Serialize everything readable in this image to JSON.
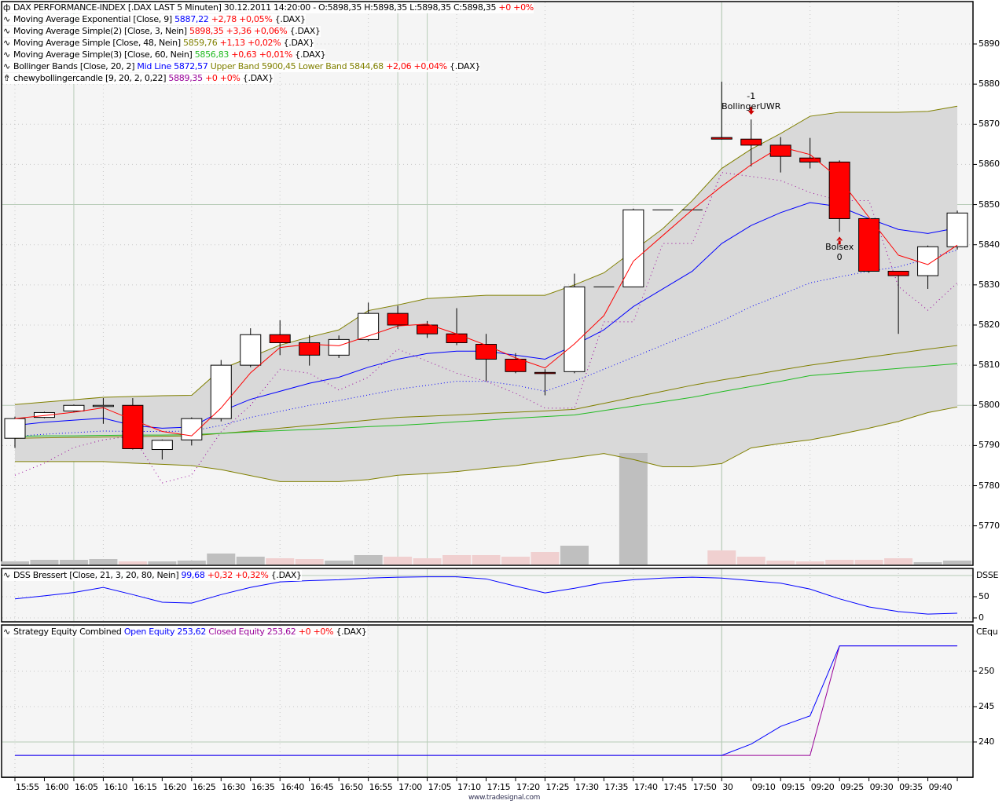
{
  "header": {
    "title": "DAX PERFORMANCE-INDEX [.DAX LAST 5 Minuten] 30.12.2011 14:20:00 - O:5898,35 H:5898,35 L:5898,35 C:5898,35",
    "change": "+0 +0%"
  },
  "legends": [
    {
      "name": "Moving Average Exponential [Close, 9]",
      "value": "5887,22",
      "value_color": "#0000ff",
      "change": "+2,78 +0,05%",
      "suffix": "{.DAX}"
    },
    {
      "name": "Moving Average Simple(2) [Close, 3, Nein]",
      "value": "5898,35",
      "value_color": "#ff0000",
      "change": "+3,36 +0,06%",
      "suffix": "{.DAX}"
    },
    {
      "name": "Moving Average Simple [Close, 48, Nein]",
      "value": "5859,76",
      "value_color": "#808000",
      "change": "+1,13 +0,02%",
      "suffix": "{.DAX}"
    },
    {
      "name": "Moving Average Simple(3) [Close, 60, Nein]",
      "value": "5856,83",
      "value_color": "#22bb22",
      "change": "+0,63 +0,01%",
      "suffix": "{.DAX}"
    }
  ],
  "bollinger_legend": {
    "name": "Bollinger Bands [Close, 20, 2]",
    "mid_label": "Mid Line 5872,57",
    "upper_label": "Upper Band 5900,45",
    "lower_label": "Lower Band 5844,68",
    "change": "+2,06 +0,04%",
    "suffix": "{.DAX}"
  },
  "chewy_legend": {
    "name": "chewybollingercandle [9, 20, 2, 0,22]",
    "value": "5889,35",
    "change": "+0 +0%",
    "suffix": "{.DAX}"
  },
  "dss_legend": {
    "name": "DSS Bressert [Close, 21, 3, 20, 80, Nein]",
    "value": "99,68",
    "change": "+0,32 +0,32%",
    "suffix": "{.DAX}",
    "axis_title": "DSSE"
  },
  "equity_legend": {
    "name": "Strategy Equity Combined",
    "open": "Open Equity 253,62",
    "closed": "Closed Equity 253,62",
    "change": "+0 +0%",
    "suffix": "{.DAX}",
    "axis_title": "CEqu"
  },
  "annotations": [
    {
      "top": "-1",
      "label": "BollingerUWR",
      "bar": 25,
      "arrow": "down"
    },
    {
      "top": "Bolsex",
      "label": "0",
      "bar": 28,
      "arrow": "up"
    }
  ],
  "footer": "www.tradesignal.com",
  "colors": {
    "up": "#ffffff",
    "down": "#ff0000",
    "ema": "#0000ff",
    "sma3": "#ff0000",
    "ma48": "#808000",
    "ma60": "#22bb22",
    "band_fill": "#d9d9d9",
    "band_line": "#808000",
    "chewy": "#990099",
    "open_equity": "#0000ff",
    "closed_equity": "#990099",
    "vol_up": "#bfbfbf",
    "vol_down": "#f0d0d0"
  },
  "chart_data": [
    {
      "type": "candlestick",
      "title": "DAX PERFORMANCE-INDEX",
      "ylim": [
        5765,
        5895
      ],
      "yticks": [
        5890,
        5880,
        5870,
        5860,
        5850,
        5840,
        5830,
        5820,
        5810,
        5800,
        5790,
        5780,
        5770
      ],
      "ytick_labels": [
        "5890",
        "5880",
        "5870",
        "5860",
        "5850",
        "5840",
        "5830",
        "5820",
        "5810",
        "5800",
        "5790",
        "5780",
        "5770"
      ],
      "x_labels": [
        "15:55",
        "16:00",
        "16:05",
        "16:10",
        "16:15",
        "16:20",
        "16:25",
        "16:30",
        "16:35",
        "16:40",
        "16:45",
        "16:50",
        "16:55",
        "17:00",
        "17:05",
        "17:10",
        "17:15",
        "17:20",
        "17:25",
        "17:30",
        "17:35",
        "17:40",
        "17:45",
        "17:50",
        "30",
        "09:10",
        "09:15",
        "09:20",
        "09:25",
        "09:30",
        "09:35",
        "09:40",
        ""
      ],
      "ohlc": [
        [
          5791.8,
          5797.2,
          5789.4,
          5796.7
        ],
        [
          5797.0,
          5798.4,
          5796.8,
          5798.2
        ],
        [
          5798.6,
          5800.2,
          5798.4,
          5800.0
        ],
        [
          5800.0,
          5801.8,
          5795.4,
          5800.0
        ],
        [
          5800.0,
          5801.8,
          5789.0,
          5789.2
        ],
        [
          5789.0,
          5791.5,
          5786.5,
          5791.3
        ],
        [
          5791.4,
          5797.0,
          5790.0,
          5796.7
        ],
        [
          5796.7,
          5811.3,
          5796.0,
          5810.0
        ],
        [
          5810.0,
          5819.2,
          5809.5,
          5817.6
        ],
        [
          5817.6,
          5821.2,
          5812.5,
          5815.6
        ],
        [
          5815.6,
          5817.5,
          5809.9,
          5812.5
        ],
        [
          5812.5,
          5817.4,
          5811.8,
          5816.4
        ],
        [
          5816.4,
          5825.6,
          5816.0,
          5822.9
        ],
        [
          5822.9,
          5824.8,
          5819.0,
          5820.0
        ],
        [
          5820.0,
          5821.0,
          5816.8,
          5817.8
        ],
        [
          5817.8,
          5824.2,
          5815.0,
          5815.6
        ],
        [
          5815.2,
          5817.8,
          5806.0,
          5811.5
        ],
        [
          5811.5,
          5813.0,
          5808.0,
          5808.4
        ],
        [
          5808.2,
          5809.0,
          5802.5,
          5808.0
        ],
        [
          5808.4,
          5832.8,
          5808.0,
          5829.5
        ],
        [
          5829.5,
          5829.5,
          5829.5,
          5829.5
        ],
        [
          5829.5,
          5849.0,
          5829.5,
          5848.7
        ],
        [
          5848.7,
          5848.7,
          5848.7,
          5848.7
        ],
        [
          5848.7,
          5848.7,
          5848.7,
          5848.7
        ],
        [
          5866.7,
          5880.6,
          5866.2,
          5866.3
        ],
        [
          5866.3,
          5871.2,
          5859.5,
          5864.8
        ],
        [
          5864.8,
          5866.8,
          5858.0,
          5862.0
        ],
        [
          5861.6,
          5866.6,
          5859.0,
          5860.6
        ],
        [
          5860.6,
          5861.0,
          5843.2,
          5846.5
        ],
        [
          5846.5,
          5846.5,
          5833.0,
          5833.4
        ],
        [
          5833.4,
          5833.4,
          5817.8,
          5832.3
        ],
        [
          5832.3,
          5839.8,
          5829.0,
          5839.5
        ],
        [
          5839.5,
          5848.5,
          5838.8,
          5847.9
        ]
      ],
      "volume": [
        4,
        6,
        6,
        7,
        4,
        4,
        5,
        14,
        10,
        8,
        7,
        5,
        12,
        10,
        8,
        12,
        12,
        10,
        16,
        24,
        0,
        142,
        0,
        0,
        18,
        10,
        5,
        4,
        6,
        6,
        8,
        3,
        5
      ],
      "series": [
        {
          "key": "ema",
          "values": [
            5795,
            5795.8,
            5796.3,
            5796.8,
            5795,
            5794.3,
            5794.6,
            5798.5,
            5801.5,
            5803.5,
            5805.5,
            5807,
            5809.5,
            5811.5,
            5812.9,
            5813.5,
            5813.5,
            5812.5,
            5811.5,
            5815,
            5818.8,
            5824.6,
            5829,
            5833.4,
            5840.3,
            5844.8,
            5848,
            5850.5,
            5849.5,
            5846.5,
            5843.8,
            5842.8,
            5844.2
          ]
        },
        {
          "key": "upper",
          "values": [
            5800.2,
            5800.8,
            5801.4,
            5802,
            5802.2,
            5802.4,
            5802.5,
            5809,
            5812,
            5815,
            5817,
            5818.8,
            5823.6,
            5825,
            5826.6,
            5827,
            5827.4,
            5827.4,
            5827.4,
            5830,
            5833,
            5838.5,
            5844,
            5851,
            5859,
            5863.8,
            5867.7,
            5872,
            5873,
            5873,
            5873,
            5873.2,
            5874.5
          ]
        },
        {
          "key": "lower",
          "values": [
            5786,
            5786,
            5786,
            5786,
            5785.6,
            5785.3,
            5785,
            5784,
            5782.5,
            5781,
            5781,
            5781,
            5781.5,
            5782.6,
            5783,
            5783.5,
            5784.3,
            5785,
            5786,
            5787,
            5788,
            5786.5,
            5784.7,
            5784.7,
            5785.5,
            5789.4,
            5790.5,
            5791.4,
            5792.8,
            5794.3,
            5796,
            5798.2,
            5799.6
          ]
        },
        {
          "key": "mid",
          "values": [
            5792.3,
            5792.8,
            5793.2,
            5793.6,
            5793.5,
            5793.5,
            5793.6,
            5795,
            5797,
            5798.5,
            5800,
            5801.2,
            5802.6,
            5804,
            5805,
            5806,
            5806,
            5805,
            5803.5,
            5806,
            5809,
            5812,
            5815,
            5818,
            5821,
            5824.6,
            5827.5,
            5830.5,
            5832,
            5833.4,
            5834.5,
            5836.5,
            5838.7
          ]
        },
        {
          "key": "ma48",
          "values": [
            5791.8,
            5791.9,
            5792,
            5792.1,
            5792.2,
            5792.3,
            5792.4,
            5793,
            5793.6,
            5794.3,
            5795,
            5795.6,
            5796.3,
            5797,
            5797.3,
            5797.6,
            5798,
            5798.3,
            5798.6,
            5799,
            5800.5,
            5802,
            5803.5,
            5805,
            5806.3,
            5807.5,
            5808.8,
            5810,
            5811,
            5812,
            5813,
            5814,
            5814.9
          ]
        },
        {
          "key": "ma60",
          "values": [
            5792.3,
            5792.4,
            5792.4,
            5792.5,
            5792.6,
            5792.6,
            5792.7,
            5793,
            5793.4,
            5793.7,
            5794,
            5794.3,
            5794.7,
            5795,
            5795.4,
            5795.9,
            5796.3,
            5796.8,
            5797.2,
            5797.6,
            5798.7,
            5799.8,
            5800.9,
            5802,
            5803.4,
            5804.7,
            5806,
            5807.4,
            5808,
            5808.6,
            5809.2,
            5809.8,
            5810.4
          ]
        },
        {
          "key": "chewy",
          "values": [
            5782.6,
            5785.6,
            5789.5,
            5791.4,
            5792.4,
            5780.7,
            5782.6,
            5793.4,
            5800,
            5809,
            5808,
            5803.8,
            5807,
            5814,
            5811,
            5808,
            5806,
            5803,
            5799.3,
            5799.3,
            5820.8,
            5820.8,
            5840.3,
            5840.3,
            5858,
            5857,
            5856,
            5853,
            5851,
            5851,
            5829.6,
            5823.7,
            5830.5
          ]
        }
      ]
    },
    {
      "type": "line",
      "title": "DSS Bressert",
      "ylim": [
        0,
        100
      ],
      "yticks": [
        50,
        0
      ],
      "ytick_labels": [
        "50",
        "0"
      ],
      "values": [
        45,
        52,
        60,
        72,
        55,
        37,
        35,
        55,
        72,
        85,
        88,
        90,
        94,
        96,
        97,
        97,
        92,
        75,
        59,
        70,
        83,
        90,
        94,
        96,
        94,
        88,
        82,
        68,
        45,
        26,
        15,
        9,
        11
      ]
    },
    {
      "type": "line",
      "title": "Strategy Equity Combined",
      "ylim": [
        236,
        256
      ],
      "yticks": [
        250,
        245,
        240
      ],
      "ytick_labels": [
        "250",
        "245",
        "240"
      ],
      "series": [
        {
          "name": "Open Equity",
          "values": [
            238.1,
            238.1,
            238.1,
            238.1,
            238.1,
            238.1,
            238.1,
            238.1,
            238.1,
            238.1,
            238.1,
            238.1,
            238.1,
            238.1,
            238.1,
            238.1,
            238.1,
            238.1,
            238.1,
            238.1,
            238.1,
            238.1,
            238.1,
            238.1,
            238.1,
            239.7,
            242.2,
            243.7,
            253.6,
            253.6,
            253.6,
            253.6,
            253.6
          ]
        },
        {
          "name": "Closed Equity",
          "values": [
            238.1,
            238.1,
            238.1,
            238.1,
            238.1,
            238.1,
            238.1,
            238.1,
            238.1,
            238.1,
            238.1,
            238.1,
            238.1,
            238.1,
            238.1,
            238.1,
            238.1,
            238.1,
            238.1,
            238.1,
            238.1,
            238.1,
            238.1,
            238.1,
            238.1,
            238.1,
            238.1,
            238.1,
            253.6,
            253.6,
            253.6,
            253.6,
            253.6
          ]
        }
      ]
    }
  ]
}
